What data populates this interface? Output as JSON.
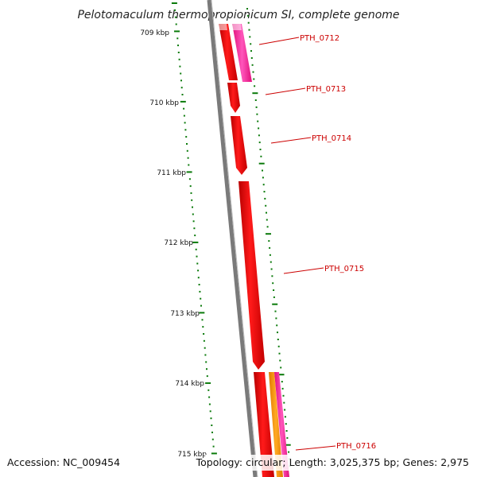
{
  "map": {
    "title": "Pelotomaculum thermopropionicum SI, complete genome",
    "accession": "Accession: NC_009454",
    "summary": "Topology: circular; Length: 3,025,375 bp; Genes: 2,975"
  },
  "colors": {
    "backbone": "#7a7a7a",
    "cds_red": "#ff0000",
    "cds_pink": "#ff33aa",
    "cds_orange": "#ff9900",
    "tick": "#0a7a0a",
    "label_red": "#cc0000"
  },
  "ticks": [
    "709 kbp",
    "710 kbp",
    "711 kbp",
    "712 kbp",
    "713 kbp",
    "714 kbp",
    "715 kbp"
  ],
  "genes": [
    {
      "id": "PTH_0712",
      "label": "PTH_0712"
    },
    {
      "id": "PTH_0713",
      "label": "PTH_0713"
    },
    {
      "id": "PTH_0714",
      "label": "PTH_0714"
    },
    {
      "id": "PTH_0715",
      "label": "PTH_0715"
    },
    {
      "id": "PTH_0716",
      "label": "PTH_0716"
    }
  ]
}
